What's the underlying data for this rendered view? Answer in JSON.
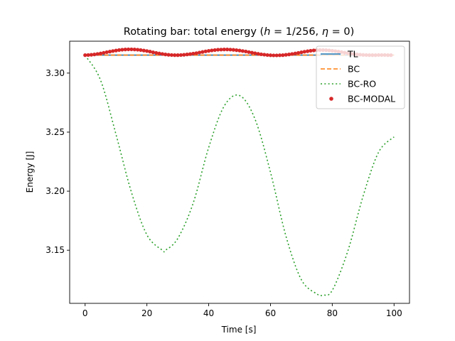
{
  "chart_data": {
    "type": "line",
    "title": "Rotating bar: total energy (h = 1/256, η = 0)",
    "xlabel": "Time [s]",
    "ylabel": "Energy [J]",
    "xlim": [
      -5,
      105
    ],
    "ylim": [
      3.105,
      3.327
    ],
    "xticks": [
      0,
      20,
      40,
      60,
      80,
      100
    ],
    "yticks": [
      3.15,
      3.2,
      3.25,
      3.3
    ],
    "ytick_labels": [
      "3.15",
      "3.20",
      "3.25",
      "3.30"
    ],
    "legend_position": "upper right",
    "series": [
      {
        "name": "TL",
        "style": "solid",
        "color": "#1f77b4",
        "x": [
          0,
          100
        ],
        "y": [
          3.3152,
          3.3152
        ]
      },
      {
        "name": "BC",
        "style": "dashed",
        "color": "#ff7f0e",
        "x": [
          0,
          100
        ],
        "y": [
          3.3152,
          3.3152
        ]
      },
      {
        "name": "BC-RO",
        "style": "dotted",
        "color": "#2ca02c",
        "x": [
          0,
          5,
          10,
          15,
          20,
          25,
          26,
          30,
          35,
          40,
          45,
          50,
          55,
          60,
          65,
          70,
          75,
          77,
          80,
          85,
          90,
          95,
          100
        ],
        "y": [
          3.315,
          3.294,
          3.248,
          3.199,
          3.163,
          3.15,
          3.15,
          3.16,
          3.19,
          3.237,
          3.272,
          3.281,
          3.261,
          3.216,
          3.162,
          3.125,
          3.113,
          3.112,
          3.116,
          3.149,
          3.196,
          3.233,
          3.246
        ]
      },
      {
        "name": "BC-MODAL",
        "style": "markers",
        "color": "#d62728",
        "x": [
          0,
          1,
          2,
          3,
          4,
          5,
          6,
          7,
          8,
          9,
          10,
          11,
          12,
          13,
          14,
          15,
          16,
          17,
          18,
          19,
          20,
          21,
          22,
          23,
          24,
          25,
          26,
          27,
          28,
          29,
          30,
          31,
          32,
          33,
          34,
          35,
          36,
          37,
          38,
          39,
          40,
          41,
          42,
          43,
          44,
          45,
          46,
          47,
          48,
          49,
          50,
          51,
          52,
          53,
          54,
          55,
          56,
          57,
          58,
          59,
          60,
          61,
          62,
          63,
          64,
          65,
          66,
          67,
          68,
          69,
          70,
          71,
          72,
          73,
          74,
          75,
          76,
          77,
          78,
          79,
          80,
          81,
          82,
          83,
          84,
          85,
          86,
          87,
          88,
          89,
          90,
          91,
          92,
          93,
          94,
          95,
          96,
          97,
          98,
          99
        ],
        "y": [
          3.3152,
          3.3153,
          3.3155,
          3.3158,
          3.3162,
          3.3166,
          3.3172,
          3.3177,
          3.3182,
          3.3187,
          3.3191,
          3.3195,
          3.3198,
          3.32,
          3.3201,
          3.3201,
          3.32,
          3.3198,
          3.3195,
          3.3191,
          3.3187,
          3.3182,
          3.3176,
          3.3171,
          3.3166,
          3.3162,
          3.3158,
          3.3155,
          3.3153,
          3.3152,
          3.3152,
          3.3153,
          3.3155,
          3.3158,
          3.3161,
          3.3165,
          3.3169,
          3.3174,
          3.3179,
          3.3184,
          3.3188,
          3.3192,
          3.3195,
          3.3198,
          3.3199,
          3.32,
          3.32,
          3.3199,
          3.3197,
          3.3194,
          3.3191,
          3.3187,
          3.3183,
          3.3178,
          3.3173,
          3.3168,
          3.3163,
          3.3159,
          3.3156,
          3.3153,
          3.3151,
          3.315,
          3.315,
          3.3151,
          3.3152,
          3.3155,
          3.3158,
          3.3162,
          3.3166,
          3.3171,
          3.3176,
          3.3181,
          3.3185,
          3.3189,
          3.3192,
          3.3194,
          3.3195,
          3.3195,
          3.3194,
          3.3192,
          3.3189,
          3.3186,
          3.3182,
          3.3178,
          3.3173,
          3.3169,
          3.3165,
          3.3161,
          3.3158,
          3.3156,
          3.3154,
          3.3153,
          3.3152,
          3.3152,
          3.3152,
          3.3153,
          3.3153,
          3.3153,
          3.3152,
          3.3152
        ]
      }
    ]
  }
}
